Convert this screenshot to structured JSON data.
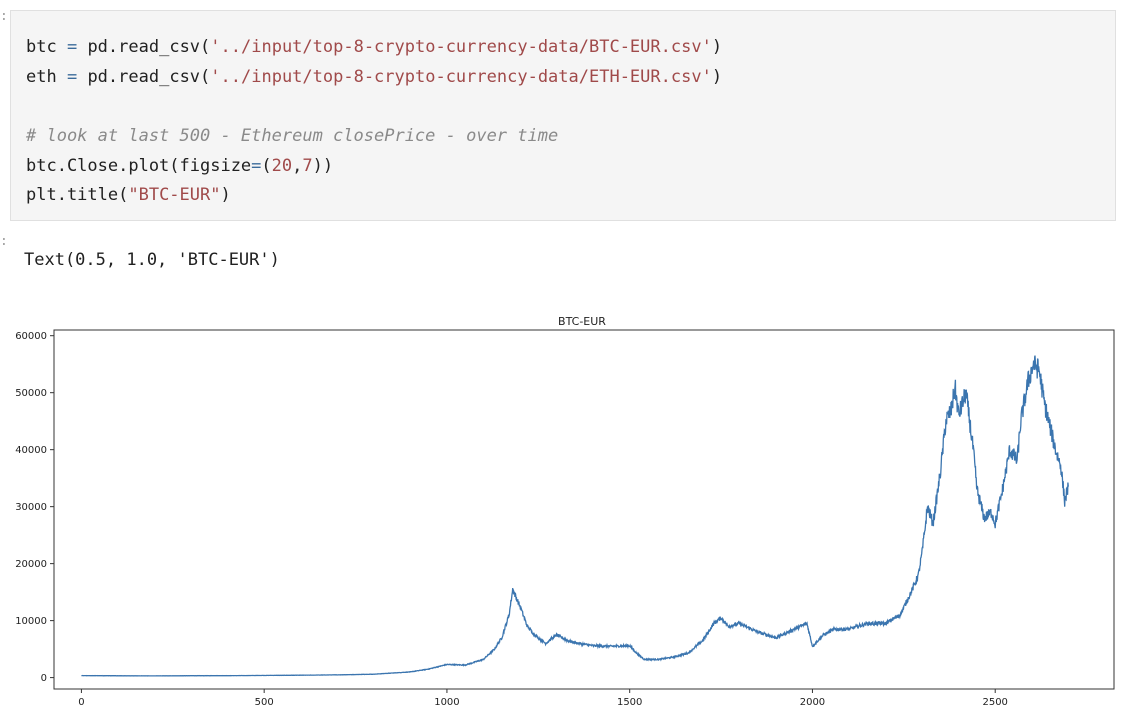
{
  "code_cell": {
    "prompt": ":",
    "lines": [
      {
        "name": "code-line-1",
        "tokens": [
          {
            "t": "btc ",
            "c": "plain"
          },
          {
            "t": "=",
            "c": "op"
          },
          {
            "t": " pd.",
            "c": "plain"
          },
          {
            "t": "read_csv",
            "c": "plain"
          },
          {
            "t": "(",
            "c": "plain"
          },
          {
            "t": "'../input/top-8-crypto-currency-data/BTC-EUR.csv'",
            "c": "str"
          },
          {
            "t": ")",
            "c": "plain"
          }
        ]
      },
      {
        "name": "code-line-2",
        "tokens": [
          {
            "t": "eth ",
            "c": "plain"
          },
          {
            "t": "=",
            "c": "op"
          },
          {
            "t": " pd.",
            "c": "plain"
          },
          {
            "t": "read_csv",
            "c": "plain"
          },
          {
            "t": "(",
            "c": "plain"
          },
          {
            "t": "'../input/top-8-crypto-currency-data/ETH-EUR.csv'",
            "c": "str"
          },
          {
            "t": ")",
            "c": "plain"
          }
        ]
      },
      {
        "name": "code-line-3",
        "tokens": [
          {
            "t": " ",
            "c": "plain"
          }
        ]
      },
      {
        "name": "code-line-4",
        "tokens": [
          {
            "t": "# look at last 500 - Ethereum closePrice - over time",
            "c": "comment"
          }
        ]
      },
      {
        "name": "code-line-5",
        "tokens": [
          {
            "t": "btc.Close.plot(figsize",
            "c": "plain"
          },
          {
            "t": "=",
            "c": "op"
          },
          {
            "t": "(",
            "c": "plain"
          },
          {
            "t": "20",
            "c": "num"
          },
          {
            "t": ",",
            "c": "plain"
          },
          {
            "t": "7",
            "c": "num"
          },
          {
            "t": "))",
            "c": "plain"
          }
        ]
      },
      {
        "name": "code-line-6",
        "tokens": [
          {
            "t": "plt.title(",
            "c": "plain"
          },
          {
            "t": "\"BTC-EUR\"",
            "c": "str"
          },
          {
            "t": ")",
            "c": "plain"
          }
        ]
      }
    ]
  },
  "output": {
    "prompt": ":",
    "text": "Text(0.5, 1.0, 'BTC-EUR')"
  },
  "colors": {
    "line": "#3b75af",
    "code_bg": "#f5f5f5"
  },
  "chart_data": {
    "type": "line",
    "title": "BTC-EUR",
    "xlabel": "",
    "ylabel": "",
    "xlim": [
      -75,
      2825
    ],
    "ylim": [
      -2000,
      61000
    ],
    "xticks": [
      0,
      500,
      1000,
      1500,
      2000,
      2500
    ],
    "yticks": [
      0,
      10000,
      20000,
      30000,
      40000,
      50000,
      60000
    ],
    "x_length": 2700,
    "series": [
      {
        "keypoints": [
          [
            0,
            350
          ],
          [
            100,
            320
          ],
          [
            200,
            300
          ],
          [
            300,
            330
          ],
          [
            400,
            340
          ],
          [
            500,
            380
          ],
          [
            600,
            420
          ],
          [
            700,
            480
          ],
          [
            800,
            600
          ],
          [
            850,
            800
          ],
          [
            900,
            1000
          ],
          [
            950,
            1500
          ],
          [
            1000,
            2300
          ],
          [
            1050,
            2200
          ],
          [
            1100,
            3200
          ],
          [
            1130,
            5000
          ],
          [
            1150,
            7000
          ],
          [
            1170,
            11000
          ],
          [
            1180,
            15500
          ],
          [
            1190,
            14000
          ],
          [
            1200,
            12500
          ],
          [
            1220,
            9000
          ],
          [
            1240,
            7500
          ],
          [
            1270,
            6000
          ],
          [
            1300,
            7500
          ],
          [
            1330,
            6500
          ],
          [
            1360,
            6000
          ],
          [
            1400,
            5600
          ],
          [
            1450,
            5500
          ],
          [
            1500,
            5600
          ],
          [
            1520,
            4200
          ],
          [
            1540,
            3200
          ],
          [
            1580,
            3200
          ],
          [
            1620,
            3600
          ],
          [
            1660,
            4300
          ],
          [
            1700,
            6500
          ],
          [
            1730,
            9500
          ],
          [
            1750,
            10500
          ],
          [
            1770,
            9000
          ],
          [
            1800,
            9500
          ],
          [
            1850,
            8000
          ],
          [
            1900,
            7000
          ],
          [
            1950,
            8500
          ],
          [
            1985,
            9500
          ],
          [
            2000,
            5500
          ],
          [
            2030,
            7500
          ],
          [
            2060,
            8500
          ],
          [
            2100,
            8500
          ],
          [
            2150,
            9500
          ],
          [
            2200,
            9500
          ],
          [
            2240,
            11000
          ],
          [
            2270,
            15000
          ],
          [
            2290,
            18000
          ],
          [
            2300,
            22000
          ],
          [
            2315,
            30000
          ],
          [
            2330,
            27000
          ],
          [
            2350,
            36000
          ],
          [
            2365,
            45000
          ],
          [
            2380,
            47000
          ],
          [
            2390,
            51000
          ],
          [
            2400,
            46000
          ],
          [
            2420,
            50000
          ],
          [
            2440,
            40000
          ],
          [
            2450,
            33000
          ],
          [
            2470,
            28000
          ],
          [
            2490,
            29000
          ],
          [
            2500,
            27000
          ],
          [
            2520,
            33000
          ],
          [
            2540,
            40000
          ],
          [
            2560,
            38000
          ],
          [
            2570,
            45000
          ],
          [
            2590,
            52000
          ],
          [
            2605,
            55000
          ],
          [
            2620,
            54000
          ],
          [
            2635,
            48000
          ],
          [
            2650,
            44000
          ],
          [
            2665,
            40000
          ],
          [
            2680,
            37000
          ],
          [
            2690,
            31000
          ],
          [
            2700,
            33500
          ]
        ]
      }
    ]
  }
}
